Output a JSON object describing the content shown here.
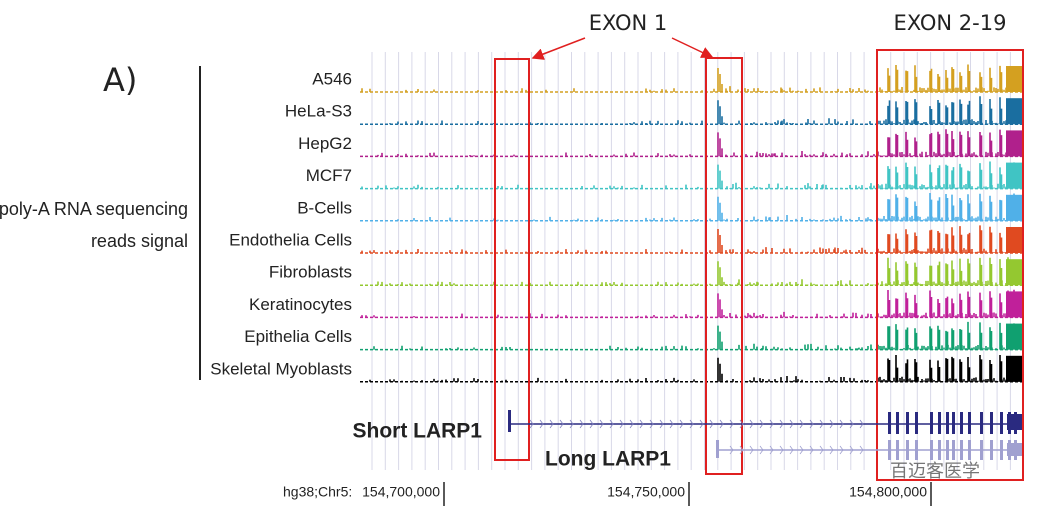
{
  "panel_label": "A)",
  "annotations": {
    "exon1": "EXON 1",
    "exon2_19": "EXON 2-19"
  },
  "y_label": [
    "poly-A RNA sequencing",
    "reads signal"
  ],
  "tracks": [
    {
      "name": "A546",
      "color": "#d4a020"
    },
    {
      "name": "HeLa-S3",
      "color": "#1a6ea0"
    },
    {
      "name": "HepG2",
      "color": "#b0208c"
    },
    {
      "name": "MCF7",
      "color": "#40c4c4"
    },
    {
      "name": "B-Cells",
      "color": "#50b0e8"
    },
    {
      "name": "Endothelia Cells",
      "color": "#e04a20"
    },
    {
      "name": "Fibroblasts",
      "color": "#94c830"
    },
    {
      "name": "Keratinocytes",
      "color": "#c0209a"
    },
    {
      "name": "Epithelia Cells",
      "color": "#10a070"
    },
    {
      "name": "Skeletal Myoblasts",
      "color": "#000000"
    }
  ],
  "genes": {
    "short": "Short LARP1",
    "long": "Long LARP1"
  },
  "coordinates": {
    "prefix": "hg38;Chr5:",
    "ticks": [
      "154,700,000",
      "154,750,000",
      "154,800,000"
    ]
  },
  "watermark": "百迈客医学"
}
